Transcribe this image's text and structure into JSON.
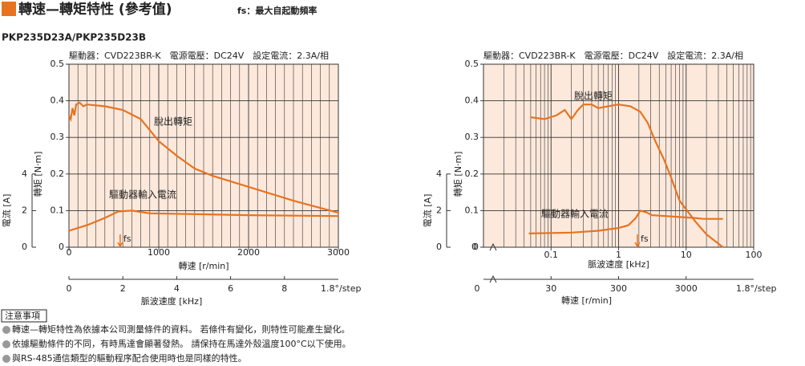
{
  "header": {
    "title": "轉速—轉矩特性 (參考值)",
    "note": "fs：最大自起動頻率",
    "model": "PKP235D23A/PKP235D23B"
  },
  "chart_data": [
    {
      "type": "line",
      "subtitle": "驅動器：CVD223BR-K　電源電壓：DC24V　設定電流：2.3A/相",
      "xlabel": "轉速 [r/min]",
      "ylabel": "轉矩 [N·m]",
      "y2label": "電流 [A]",
      "x2label": "脈波速度 [kHz]",
      "x2_end_label": "1.8°/step",
      "xscale": "linear",
      "xlim": [
        0,
        3000
      ],
      "xticks": [
        0,
        1000,
        2000,
        3000
      ],
      "xminorticks": [
        100,
        200,
        300,
        400,
        500,
        600,
        700,
        800,
        900,
        1100,
        1200,
        1300,
        1400,
        1500,
        1600,
        1700,
        1800,
        1900,
        2100,
        2200,
        2300,
        2400,
        2500,
        2600,
        2700,
        2800,
        2900
      ],
      "x2lim": [
        0,
        10
      ],
      "x2ticks": [
        0,
        2,
        4,
        6,
        8
      ],
      "ylim": [
        0,
        0.5
      ],
      "yticks": [
        0,
        0.1,
        0.2,
        0.3,
        0.4,
        0.5
      ],
      "y2lim": [
        0,
        10
      ],
      "y2ticks": [
        0,
        2,
        4
      ],
      "series": [
        {
          "name": "脫出轉矩",
          "color": "#e8731f",
          "x": [
            0,
            20,
            40,
            60,
            80,
            120,
            160,
            200,
            400,
            600,
            800,
            1000,
            1200,
            1400,
            1600,
            2000,
            2500,
            3000
          ],
          "values": [
            0.36,
            0.35,
            0.38,
            0.36,
            0.39,
            0.395,
            0.385,
            0.39,
            0.385,
            0.375,
            0.35,
            0.29,
            0.25,
            0.215,
            0.195,
            0.165,
            0.127,
            0.094
          ]
        },
        {
          "name": "驅動器輸入電流",
          "color": "#e8731f",
          "axis": "y2",
          "x": [
            0,
            200,
            400,
            550,
            700,
            900,
            1500,
            2000,
            3000
          ],
          "values": [
            0.9,
            1.2,
            1.6,
            1.95,
            2.0,
            1.85,
            1.8,
            1.75,
            1.7
          ]
        }
      ],
      "annotations": [
        {
          "text": "fs",
          "x": 570
        }
      ]
    },
    {
      "type": "line",
      "subtitle": "驅動器：CVD223BR-K　電源電壓：DC24V　設定電流：2.3A/相",
      "xlabel": "脈波速度 [kHz]",
      "ylabel": "轉矩 [N·m]",
      "y2label": "電流 [A]",
      "x2label": "轉速 [r/min]",
      "x2_end_label": "1.8°/step",
      "axis_break_label": "0",
      "xscale": "log",
      "xlim": [
        0.01,
        100
      ],
      "xticks": [
        0.1,
        1,
        10,
        100
      ],
      "xminorticks": [
        0.02,
        0.03,
        0.04,
        0.05,
        0.06,
        0.07,
        0.08,
        0.09,
        0.2,
        0.3,
        0.4,
        0.5,
        0.6,
        0.7,
        0.8,
        0.9,
        2,
        3,
        4,
        5,
        6,
        7,
        8,
        9,
        20,
        30,
        40,
        50,
        60,
        70,
        80,
        90
      ],
      "x2lim": [
        3,
        30000
      ],
      "x2ticks": [
        30,
        300,
        3000
      ],
      "ylim": [
        0,
        0.5
      ],
      "yticks": [
        0,
        0.1,
        0.2,
        0.3,
        0.4,
        0.5
      ],
      "y2lim": [
        0,
        10
      ],
      "y2ticks": [
        0,
        2,
        4
      ],
      "series": [
        {
          "name": "脫出轉矩",
          "color": "#e8731f",
          "x": [
            0.05,
            0.08,
            0.12,
            0.16,
            0.2,
            0.25,
            0.3,
            0.4,
            0.5,
            0.7,
            1,
            1.5,
            2.1,
            2.7,
            3.5,
            4.7,
            6,
            8,
            13.7,
            20,
            35
          ],
          "values": [
            0.355,
            0.35,
            0.36,
            0.375,
            0.35,
            0.375,
            0.39,
            0.39,
            0.38,
            0.385,
            0.39,
            0.385,
            0.37,
            0.34,
            0.29,
            0.24,
            0.19,
            0.127,
            0.07,
            0.035,
            0.0
          ]
        },
        {
          "name": "驅動器輸入電流",
          "color": "#e8731f",
          "axis": "y2",
          "x": [
            0.047,
            0.2,
            0.5,
            1,
            1.4,
            1.8,
            2.1,
            2.6,
            3.1,
            5,
            8,
            13,
            18,
            35
          ],
          "values": [
            0.75,
            0.8,
            0.9,
            1.05,
            1.2,
            1.6,
            2.0,
            1.9,
            1.75,
            1.7,
            1.65,
            1.6,
            1.55,
            1.55
          ]
        }
      ],
      "annotations": [
        {
          "text": "fs",
          "x": 1.9
        }
      ]
    }
  ],
  "notes": {
    "heading": "注意事項",
    "items": [
      "轉速—轉矩特性為依據本公司測量條件的資料。 若條件有變化，則特性可能產生變化。",
      "依據驅動條件的不同，有時馬達會顯著發熱。 請保持在馬達外殼溫度100°C以下使用。",
      "與RS-485通信類型的驅動程序配合使用時也是同樣的特性。"
    ]
  }
}
